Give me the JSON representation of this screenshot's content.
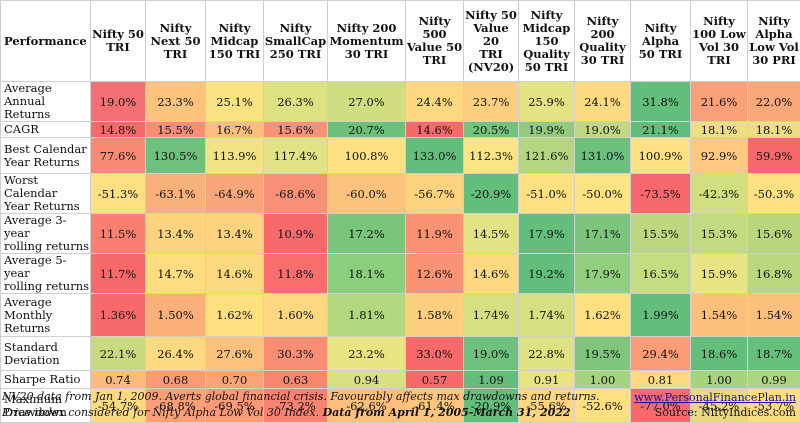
{
  "table": {
    "corner": "Performance",
    "columns": [
      "Nifty 50\nTRI",
      "Nifty\nNext 50\nTRI",
      "Nifty\nMidcap\n150 TRI",
      "Nifty\nSmallCap\n250 TRI",
      "Nifty 200\nMomentum\n30 TRI",
      "Nifty\n500\nValue 50\nTRI",
      "Nifty 50\nValue 20\nTRI\n(NV20)",
      "Nifty\nMidcap\n150\nQuality\n50 TRI",
      "Nifty\n200\nQuality\n30 TRI",
      "Nifty\nAlpha\n50 TRI",
      "Nifty\n100 Low\nVol 30\nTRI",
      "Nifty\nAlpha\nLow Vol\n30 PRI"
    ],
    "rows": [
      {
        "label": "Average Annual\nReturns",
        "values": [
          "19.0%",
          "23.3%",
          "25.1%",
          "26.3%",
          "27.0%",
          "24.4%",
          "23.7%",
          "25.9%",
          "24.1%",
          "31.8%",
          "21.6%",
          "22.0%"
        ],
        "colors": [
          "#f27071",
          "#fcc37d",
          "#f9e382",
          "#dce181",
          "#d0de81",
          "#fed880",
          "#fdcf7f",
          "#e4e383",
          "#fedb81",
          "#63be7b",
          "#f9a07a",
          "#faa77a"
        ]
      },
      {
        "label": "CAGR",
        "values": [
          "14.8%",
          "15.5%",
          "16.7%",
          "15.6%",
          "20.7%",
          "14.6%",
          "20.5%",
          "19.9%",
          "19.0%",
          "21.1%",
          "18.1%",
          "18.1%"
        ],
        "colors": [
          "#f8696b",
          "#f98e75",
          "#fcc07c",
          "#f99277",
          "#6bc17c",
          "#f8696b",
          "#74c37c",
          "#93cb7e",
          "#c0d880",
          "#63be7b",
          "#edde83",
          "#edde83"
        ]
      },
      {
        "label": "Best Calendar\nYear Returns",
        "values": [
          "77.6%",
          "130.5%",
          "113.9%",
          "117.4%",
          "100.8%",
          "133.0%",
          "112.3%",
          "121.6%",
          "131.0%",
          "100.9%",
          "92.9%",
          "59.9%"
        ],
        "colors": [
          "#f98b75",
          "#6ec17c",
          "#f2e483",
          "#e0e283",
          "#fee182",
          "#63be7b",
          "#f9e583",
          "#b5d67f",
          "#6ac07c",
          "#fee182",
          "#fdc97e",
          "#f8696b"
        ]
      },
      {
        "label": "Worst Calendar\nYear Returns",
        "values": [
          "-51.3%",
          "-63.1%",
          "-64.9%",
          "-68.6%",
          "-60.0%",
          "-56.7%",
          "-20.9%",
          "-51.0%",
          "-50.0%",
          "-73.5%",
          "-42.3%",
          "-50.3%"
        ],
        "colors": [
          "#fedf81",
          "#fab07b",
          "#f9a67a",
          "#f89076",
          "#fbc27d",
          "#fdd380",
          "#63be7b",
          "#fee082",
          "#fee383",
          "#f8696b",
          "#d2df81",
          "#fee282"
        ]
      },
      {
        "label": "Average 3-year\nrolling returns",
        "values": [
          "11.5%",
          "13.4%",
          "13.4%",
          "10.9%",
          "17.2%",
          "11.9%",
          "14.5%",
          "17.9%",
          "17.1%",
          "15.5%",
          "15.3%",
          "15.6%"
        ],
        "colors": [
          "#f98070",
          "#fdd380",
          "#fdd380",
          "#f8696b",
          "#79c57c",
          "#fa9273",
          "#e2e383",
          "#63be7b",
          "#7cc57d",
          "#bcd780",
          "#c4da80",
          "#b9d67f"
        ]
      },
      {
        "label": "Average 5-year\nrolling returns",
        "values": [
          "11.7%",
          "14.7%",
          "14.6%",
          "11.8%",
          "18.1%",
          "12.6%",
          "14.6%",
          "19.2%",
          "17.9%",
          "16.5%",
          "15.9%",
          "16.8%"
        ],
        "colors": [
          "#f8696b",
          "#fedd81",
          "#fed980",
          "#f96e6c",
          "#8ace7e",
          "#fa9274",
          "#fed980",
          "#63be7b",
          "#91cf7e",
          "#c6dc81",
          "#e9e483",
          "#b9d77f"
        ]
      },
      {
        "label": "Average\nMonthly\nReturns",
        "values": [
          "1.36%",
          "1.50%",
          "1.62%",
          "1.60%",
          "1.81%",
          "1.58%",
          "1.74%",
          "1.74%",
          "1.62%",
          "1.99%",
          "1.54%",
          "1.54%"
        ],
        "colors": [
          "#f8696b",
          "#fbb07a",
          "#fee081",
          "#fdd880",
          "#b1d87f",
          "#fdd07f",
          "#d6e082",
          "#d6e082",
          "#fee081",
          "#63be7b",
          "#fcc07c",
          "#fcc07c"
        ]
      },
      {
        "label": "Standard\nDeviation",
        "values": [
          "22.1%",
          "26.4%",
          "27.6%",
          "30.3%",
          "23.2%",
          "33.0%",
          "19.0%",
          "22.8%",
          "19.5%",
          "29.4%",
          "18.6%",
          "18.7%"
        ],
        "colors": [
          "#c7da80",
          "#fed980",
          "#fcc17d",
          "#fa8e75",
          "#ebe483",
          "#f8696b",
          "#6ec17c",
          "#dde283",
          "#7fc67c",
          "#fb9e77",
          "#63be7b",
          "#66bf7b"
        ]
      },
      {
        "label": "Sharpe Ratio",
        "values": [
          "0.74",
          "0.68",
          "0.70",
          "0.63",
          "0.94",
          "0.57",
          "1.09",
          "0.91",
          "1.00",
          "0.81",
          "1.00",
          "0.99"
        ],
        "colors": [
          "#fcbb7c",
          "#fa9a76",
          "#fba477",
          "#f9846f",
          "#d7e082",
          "#f8696b",
          "#63be7b",
          "#e7e383",
          "#a5d37f",
          "#feda81",
          "#a5d37f",
          "#acd57f"
        ]
      },
      {
        "label": "Maximum\nDrawdown",
        "values": [
          "-54.7%",
          "-68.8%",
          "-69.5%",
          "-73.2%",
          "-62.6%",
          "-61.4%",
          "-20.9%",
          "-55.6%",
          "-52.6%",
          "-77.0%",
          "-45.2%",
          "-53.7%"
        ],
        "colors": [
          "#feda81",
          "#fb9f77",
          "#fb9b76",
          "#f98270",
          "#fdc07c",
          "#fdc57d",
          "#63be7b",
          "#fed680",
          "#fee082",
          "#f8696b",
          "#ecd882",
          "#fede81"
        ]
      }
    ]
  },
  "footer": {
    "note1": "NV20 data from Jan 1, 2009. Averts global financial crisis. Favourably affects max drawdowns and returns.",
    "note2_plain": "Price index considered for Nifty Alpha Low Vol 30 Index. ",
    "note2_bold": "Data from April 1, 2005-March 31, 2022",
    "link": "www.PersonalFinancePlan.in",
    "source": "Source: NiftyIndices.com"
  }
}
